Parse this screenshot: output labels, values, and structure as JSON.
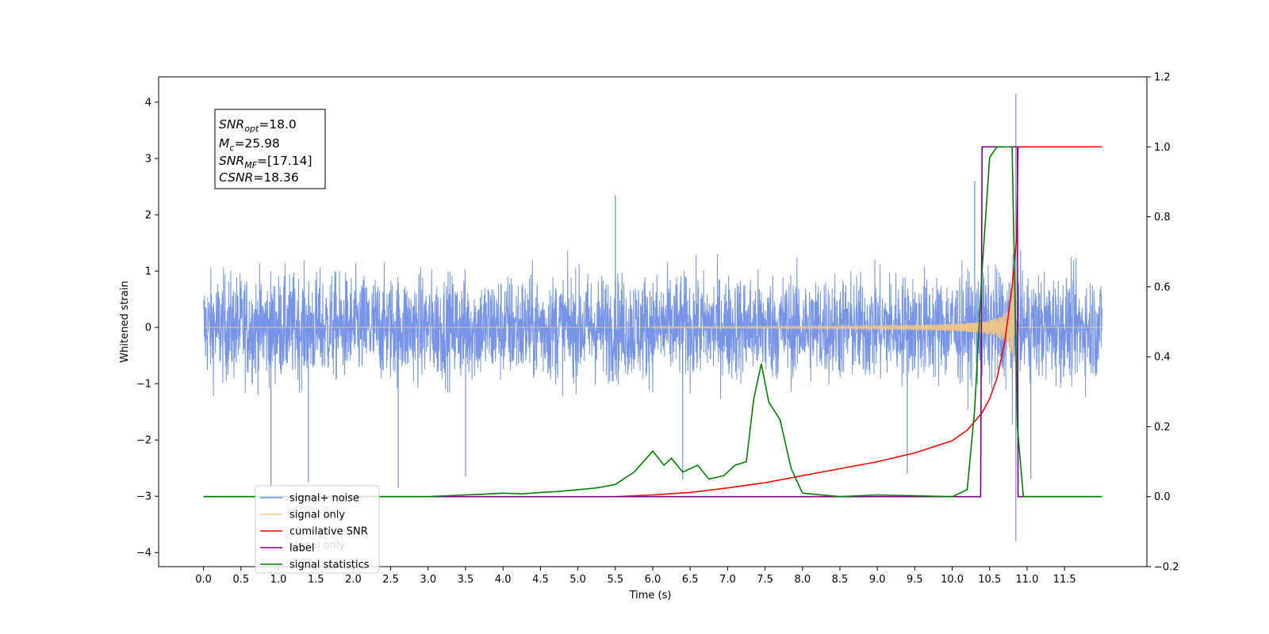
{
  "chart_data": {
    "type": "line",
    "xlabel": "Time (s)",
    "ylabel": "Whitened strain",
    "xlim": [
      -0.6,
      12.6
    ],
    "ylim": [
      -4.25,
      4.45
    ],
    "y2lim": [
      -0.2,
      1.2
    ],
    "x_ticks": [
      "0.0",
      "0.5",
      "1.0",
      "1.5",
      "2.0",
      "2.5",
      "3.0",
      "3.5",
      "4.0",
      "4.5",
      "5.0",
      "5.5",
      "6.0",
      "6.5",
      "7.0",
      "7.5",
      "8.0",
      "8.5",
      "9.0",
      "9.5",
      "10.0",
      "10.5",
      "11.0",
      "11.5"
    ],
    "y_ticks": [
      "−4",
      "−3",
      "−2",
      "−1",
      "0",
      "1",
      "2",
      "3",
      "4"
    ],
    "y2_ticks": [
      "−0.2",
      "0.0",
      "0.2",
      "0.4",
      "0.6",
      "0.8",
      "1.0",
      "1.2"
    ],
    "grid": false,
    "legend_position": "lower-left",
    "annotation": {
      "snr_opt": {
        "sym": "SNR",
        "sub": "opt",
        "val": "=18.0"
      },
      "mc": {
        "sym": "M",
        "sub": "c",
        "val": "=25.98"
      },
      "snr_mf": {
        "sym": "SNR",
        "sub": "MF",
        "val": "=[17.14]"
      },
      "csnr": {
        "sym": "CSNR",
        "val": "=18.36"
      }
    },
    "legend": [
      {
        "label": "signal+ noise",
        "color": "#6f8fe6"
      },
      {
        "label": "signal only",
        "color": "#f5c77e"
      },
      {
        "label": "cumilative SNR",
        "color": "#ff0000"
      },
      {
        "label": "label",
        "color": "#800080"
      },
      {
        "label": "signal statistics",
        "color": "#008000"
      }
    ],
    "legend_hidden_text": "signal only",
    "noise_series": {
      "name": "signal+ noise",
      "axis": "left",
      "x_range": [
        0.0,
        12.0
      ],
      "typical_band": [
        -1.6,
        1.6
      ],
      "extremes": [
        [
          0.9,
          -2.85
        ],
        [
          1.4,
          -2.75
        ],
        [
          2.6,
          -2.85
        ],
        [
          3.5,
          -2.65
        ],
        [
          5.5,
          2.35
        ],
        [
          6.4,
          -2.7
        ],
        [
          9.4,
          -2.6
        ],
        [
          10.3,
          2.6
        ],
        [
          10.85,
          4.15
        ],
        [
          10.85,
          -3.8
        ],
        [
          11.05,
          -2.7
        ]
      ]
    },
    "chirp_series": {
      "name": "signal only",
      "axis": "left",
      "x_range": [
        0.0,
        12.0
      ],
      "visible_from": 6.0,
      "peak_time": 10.85,
      "peak_amplitude": 1.3
    },
    "csnr_series": {
      "name": "cumilative SNR",
      "axis": "right",
      "x": [
        5.5,
        6.0,
        6.5,
        7.0,
        7.5,
        8.0,
        8.5,
        9.0,
        9.5,
        10.0,
        10.2,
        10.4,
        10.5,
        10.6,
        10.7,
        10.8,
        10.86,
        10.88,
        12.0
      ],
      "y": [
        0.0,
        0.005,
        0.012,
        0.025,
        0.04,
        0.06,
        0.08,
        0.1,
        0.125,
        0.16,
        0.19,
        0.24,
        0.28,
        0.34,
        0.44,
        0.6,
        0.74,
        1.0,
        1.0
      ]
    },
    "label_series": {
      "name": "label",
      "axis": "right",
      "x": [
        0.0,
        10.38,
        10.4,
        10.87,
        10.88,
        12.0
      ],
      "y": [
        0.0,
        0.0,
        1.0,
        1.0,
        0.0,
        0.0
      ]
    },
    "stat_series": {
      "name": "signal statistics",
      "axis": "right",
      "x": [
        0.0,
        3.0,
        3.5,
        3.75,
        4.0,
        4.25,
        4.5,
        4.75,
        5.0,
        5.25,
        5.5,
        5.75,
        6.0,
        6.15,
        6.25,
        6.4,
        6.6,
        6.75,
        6.95,
        7.1,
        7.25,
        7.35,
        7.45,
        7.55,
        7.7,
        7.85,
        8.0,
        8.5,
        9.0,
        10.0,
        10.2,
        10.3,
        10.4,
        10.5,
        10.6,
        10.7,
        10.8,
        10.87,
        10.95,
        12.0
      ],
      "y": [
        0.0,
        0.0,
        0.005,
        0.007,
        0.01,
        0.008,
        0.012,
        0.015,
        0.02,
        0.025,
        0.035,
        0.07,
        0.13,
        0.09,
        0.11,
        0.07,
        0.09,
        0.05,
        0.06,
        0.09,
        0.1,
        0.28,
        0.38,
        0.27,
        0.22,
        0.08,
        0.01,
        0.0,
        0.005,
        0.0,
        0.02,
        0.25,
        0.65,
        0.97,
        1.0,
        1.0,
        1.0,
        0.2,
        0.0,
        0.0
      ]
    }
  }
}
